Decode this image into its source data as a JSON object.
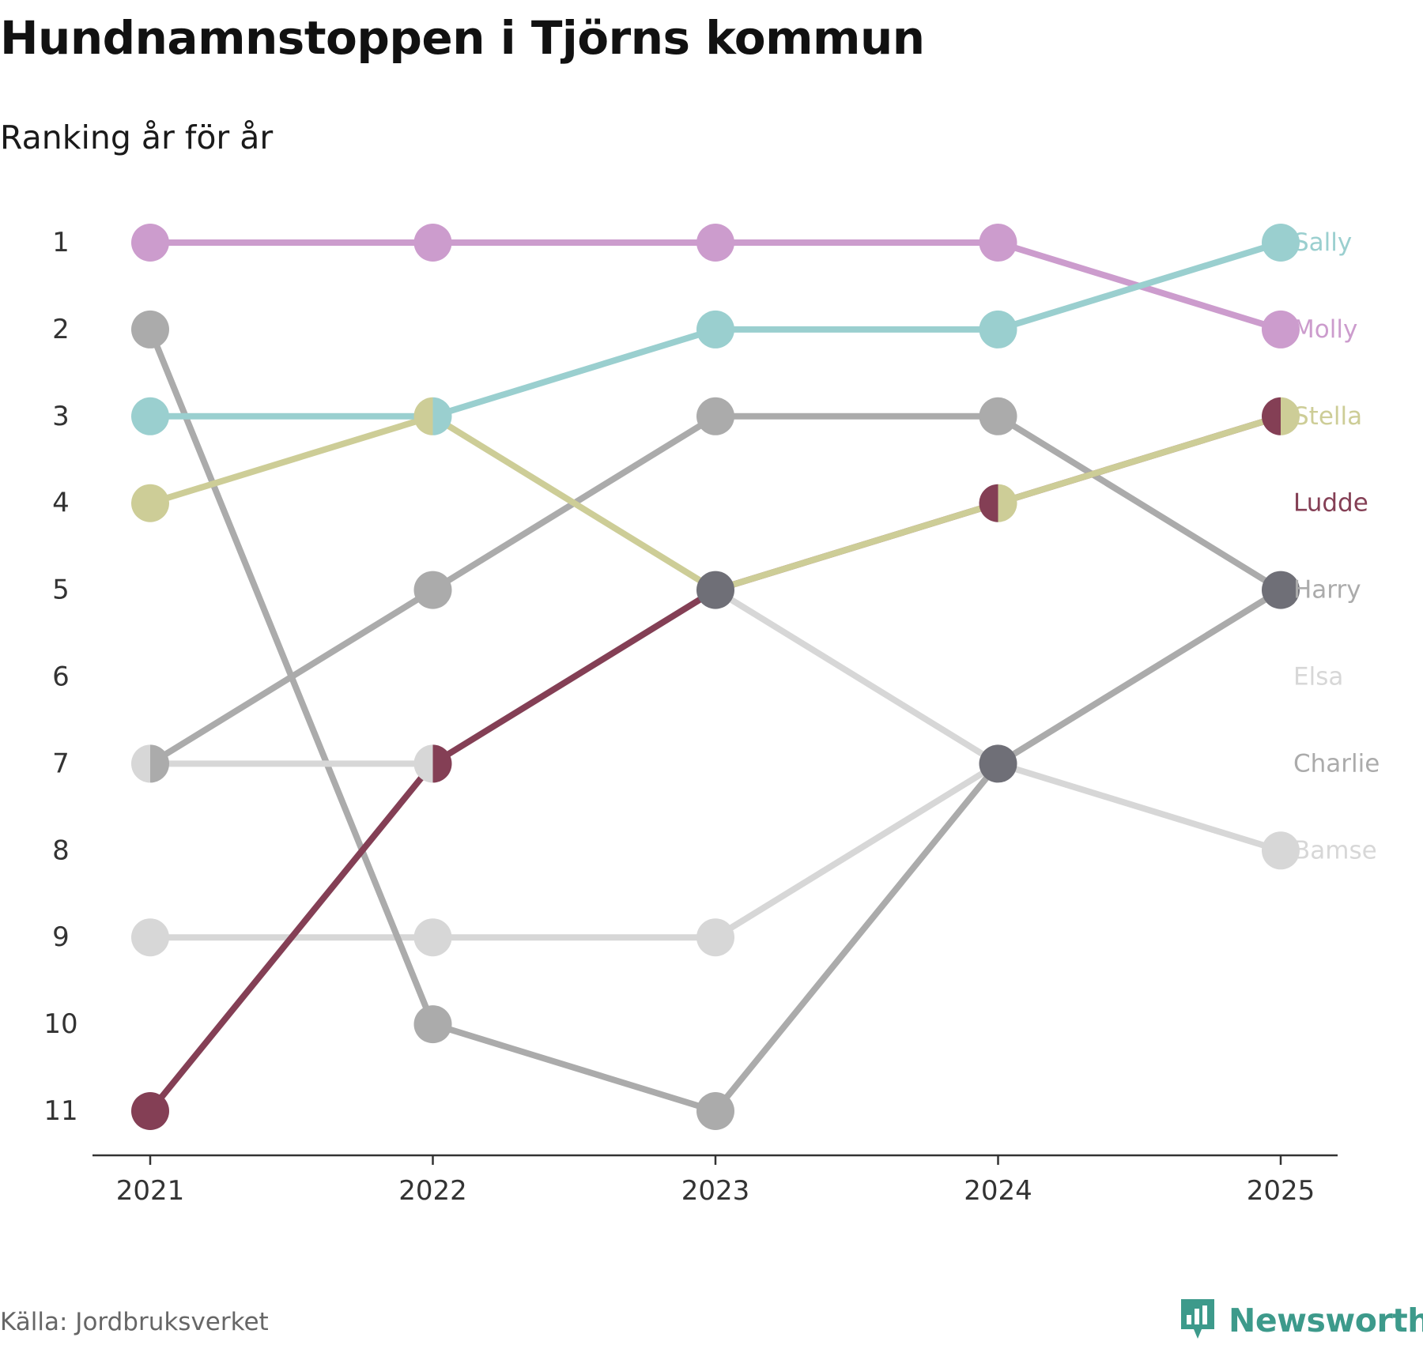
{
  "title": "Hundnamnstoppen i Tjörns kommun",
  "subtitle": "Ranking år för år",
  "source": "Källa: Jordbruksverket",
  "brand": {
    "name": "Newsworthy",
    "icon": "newsworthy-logo-icon",
    "color": "#3d9a8b"
  },
  "chart_data": {
    "type": "line",
    "title": "Hundnamnstoppen i Tjörns kommun",
    "subtitle": "Ranking år för år",
    "xlabel": "",
    "ylabel": "",
    "ylim": [
      1,
      11
    ],
    "y_inverted": true,
    "grid": false,
    "x": [
      "2021",
      "2022",
      "2023",
      "2024",
      "2025"
    ],
    "yticks": [
      "1",
      "2",
      "3",
      "4",
      "5",
      "6",
      "7",
      "8",
      "9",
      "10",
      "11"
    ],
    "legend": "labels at right end of lines",
    "series": [
      {
        "name": "Bamse",
        "color": "#d7d7d7",
        "values": [
          9,
          9,
          9,
          7,
          5
        ]
      },
      {
        "name": "Charlie",
        "color": "#ababab",
        "values": [
          2,
          10,
          11,
          7,
          5
        ]
      },
      {
        "name": "Elsa",
        "color": "#d7d7d7",
        "values": [
          7,
          7,
          5,
          7,
          8
        ]
      },
      {
        "name": "Harry",
        "color": "#ababab",
        "values": [
          7,
          5,
          3,
          3,
          5
        ]
      },
      {
        "name": "Ludde",
        "color": "#843f55",
        "values": [
          11,
          7,
          5,
          4,
          3
        ]
      },
      {
        "name": "Stella",
        "color": "#cdcd97",
        "values": [
          4,
          3,
          5,
          4,
          3
        ]
      },
      {
        "name": "Molly",
        "color": "#cc9ccd",
        "values": [
          1,
          1,
          1,
          1,
          2
        ]
      },
      {
        "name": "Sally",
        "color": "#9acfcf",
        "values": [
          3,
          3,
          2,
          2,
          1
        ]
      }
    ],
    "end_labels": [
      {
        "name": "Sally",
        "color": "#9acfcf",
        "rank": 1
      },
      {
        "name": "Molly",
        "color": "#cc9ccd",
        "rank": 2
      },
      {
        "name": "Stella",
        "color": "#cdcd97",
        "rank": 3
      },
      {
        "name": "Ludde",
        "color": "#843f55",
        "rank": 4
      },
      {
        "name": "Harry",
        "color": "#ababab",
        "rank": 5
      },
      {
        "name": "Elsa",
        "color": "#d7d7d7",
        "rank": 6
      },
      {
        "name": "Charlie",
        "color": "#ababab",
        "rank": 7
      },
      {
        "name": "Bamse",
        "color": "#d7d7d7",
        "rank": 8
      }
    ],
    "tie_color": "#6f6f77"
  }
}
